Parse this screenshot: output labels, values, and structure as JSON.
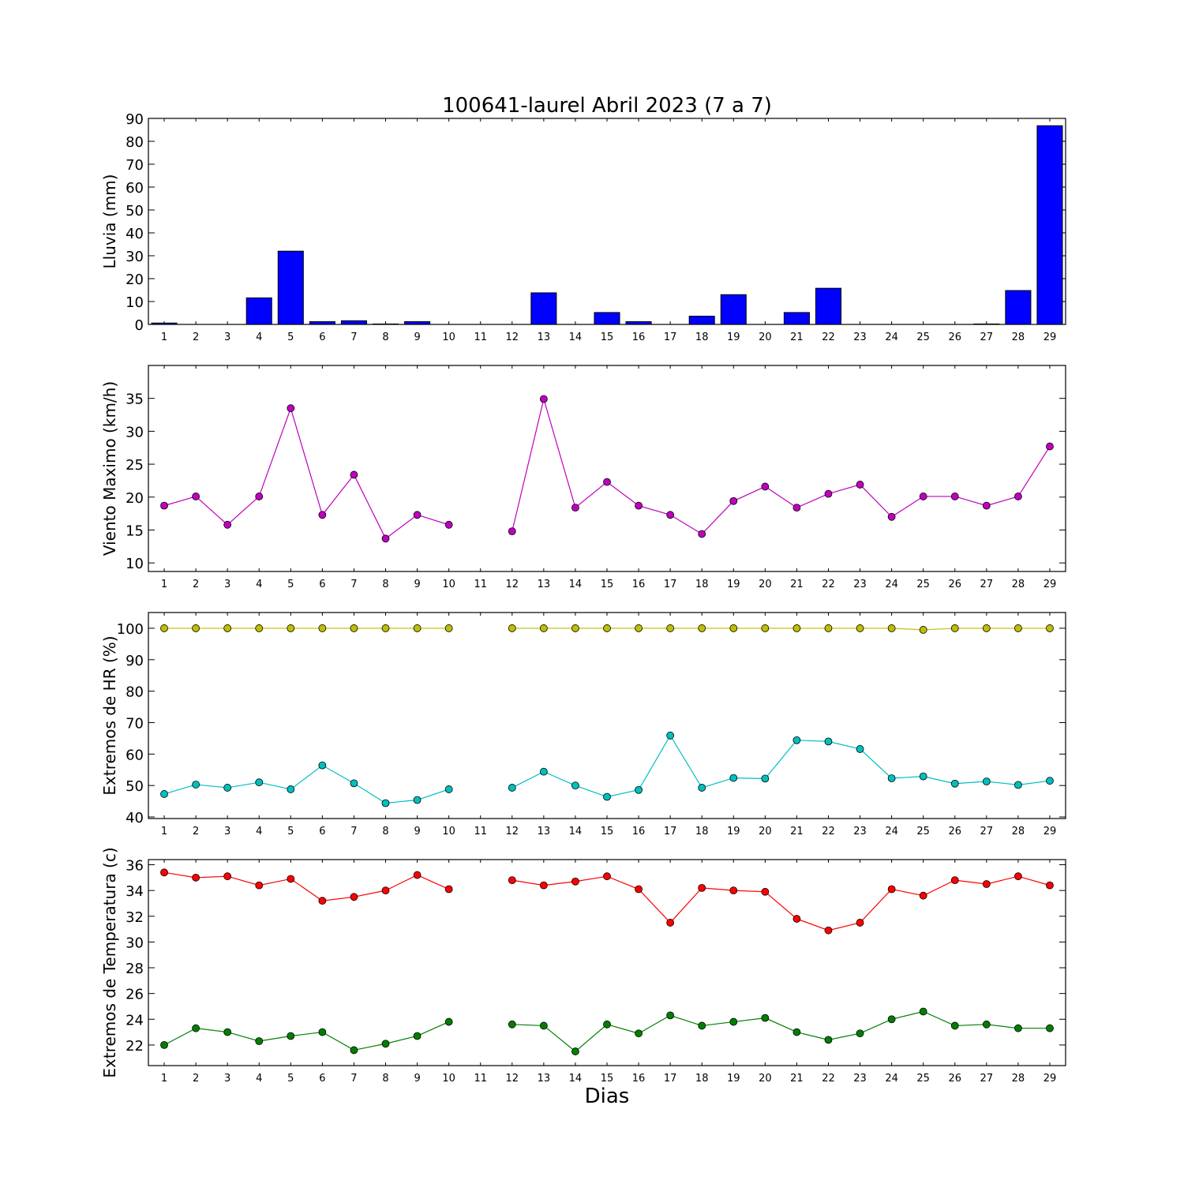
{
  "figure_title": "100641-laurel Abril 2023  (7 a 7)",
  "xlabel": "Dias",
  "chart_data": [
    {
      "type": "bar",
      "ylabel": "Lluvia (mm)",
      "ylim": [
        0,
        90
      ],
      "yticks": [
        0,
        10,
        20,
        30,
        40,
        50,
        60,
        70,
        80,
        90
      ],
      "x": [
        1,
        2,
        3,
        4,
        5,
        6,
        7,
        8,
        9,
        10,
        11,
        12,
        13,
        14,
        15,
        16,
        17,
        18,
        19,
        20,
        21,
        22,
        23,
        24,
        25,
        26,
        27,
        28,
        29
      ],
      "xticks": [
        1,
        2,
        3,
        4,
        5,
        6,
        7,
        8,
        9,
        10,
        11,
        12,
        13,
        14,
        15,
        16,
        17,
        18,
        19,
        20,
        21,
        22,
        23,
        24,
        25,
        26,
        27,
        28,
        29
      ],
      "values": [
        0.6,
        0,
        0,
        11.6,
        32.0,
        1.2,
        1.6,
        0.2,
        1.2,
        0,
        0,
        0,
        13.8,
        0,
        5.2,
        1.2,
        0,
        3.6,
        13.0,
        0,
        5.2,
        15.8,
        0,
        0,
        0,
        0,
        0.2,
        14.8,
        86.8
      ],
      "color": "#0000ff"
    },
    {
      "type": "line",
      "ylabel": "Viento Maximo (km/h)",
      "ylim": [
        8.7,
        40
      ],
      "yticks": [
        10,
        15,
        20,
        25,
        30,
        35
      ],
      "xticks": [
        1,
        2,
        3,
        4,
        5,
        6,
        7,
        8,
        9,
        10,
        11,
        12,
        13,
        14,
        15,
        16,
        17,
        18,
        19,
        20,
        21,
        22,
        23,
        24,
        25,
        26,
        27,
        28,
        29
      ],
      "series": [
        {
          "color": "#bf00bf",
          "x": [
            1,
            2,
            3,
            4,
            5,
            6,
            7,
            8,
            9,
            10,
            11,
            12,
            13,
            14,
            15,
            16,
            17,
            18,
            19,
            20,
            21,
            22,
            23,
            24,
            25,
            26,
            27,
            28,
            29
          ],
          "values": [
            18.7,
            20.1,
            15.8,
            20.1,
            33.5,
            17.3,
            23.4,
            13.7,
            17.3,
            15.8,
            null,
            14.8,
            34.9,
            18.4,
            22.3,
            18.7,
            17.3,
            14.4,
            19.4,
            21.6,
            18.4,
            20.5,
            21.9,
            17.0,
            20.1,
            20.1,
            18.7,
            20.1,
            27.7
          ]
        }
      ]
    },
    {
      "type": "line",
      "ylabel": "Extremos de HR (%)",
      "ylim": [
        39.5,
        105
      ],
      "yticks": [
        40,
        50,
        60,
        70,
        80,
        90,
        100
      ],
      "xticks": [
        1,
        2,
        3,
        4,
        5,
        6,
        7,
        8,
        9,
        10,
        11,
        12,
        13,
        14,
        15,
        16,
        17,
        18,
        19,
        20,
        21,
        22,
        23,
        24,
        25,
        26,
        27,
        28,
        29
      ],
      "series": [
        {
          "color": "#bfbf00",
          "x": [
            1,
            2,
            3,
            4,
            5,
            6,
            7,
            8,
            9,
            10,
            11,
            12,
            13,
            14,
            15,
            16,
            17,
            18,
            19,
            20,
            21,
            22,
            23,
            24,
            25,
            26,
            27,
            28,
            29
          ],
          "values": [
            100,
            100,
            100,
            100,
            100,
            100,
            100,
            100,
            100,
            100,
            null,
            100,
            100,
            100,
            100,
            100,
            100,
            100,
            100,
            100,
            100,
            100,
            100,
            100,
            99.5,
            100,
            100,
            100,
            100
          ]
        },
        {
          "color": "#00bfbf",
          "x": [
            1,
            2,
            3,
            4,
            5,
            6,
            7,
            8,
            9,
            10,
            11,
            12,
            13,
            14,
            15,
            16,
            17,
            18,
            19,
            20,
            21,
            22,
            23,
            24,
            25,
            26,
            27,
            28,
            29
          ],
          "values": [
            47.3,
            50.3,
            49.3,
            51.0,
            48.8,
            56.4,
            50.7,
            44.4,
            45.4,
            48.8,
            null,
            49.3,
            54.4,
            50.0,
            46.4,
            48.6,
            65.9,
            49.3,
            52.4,
            52.2,
            64.4,
            64.0,
            61.6,
            52.3,
            52.9,
            50.6,
            51.3,
            50.2,
            51.5
          ]
        }
      ]
    },
    {
      "type": "line",
      "ylabel": "Extremos de Temperatura (c)",
      "ylim": [
        20.4,
        36.4
      ],
      "yticks": [
        22,
        24,
        26,
        28,
        30,
        32,
        34,
        36
      ],
      "xticks": [
        1,
        2,
        3,
        4,
        5,
        6,
        7,
        8,
        9,
        10,
        11,
        12,
        13,
        14,
        15,
        16,
        17,
        18,
        19,
        20,
        21,
        22,
        23,
        24,
        25,
        26,
        27,
        28,
        29
      ],
      "series": [
        {
          "color": "#ff0000",
          "x": [
            1,
            2,
            3,
            4,
            5,
            6,
            7,
            8,
            9,
            10,
            11,
            12,
            13,
            14,
            15,
            16,
            17,
            18,
            19,
            20,
            21,
            22,
            23,
            24,
            25,
            26,
            27,
            28,
            29
          ],
          "values": [
            35.4,
            35.0,
            35.1,
            34.4,
            34.9,
            33.2,
            33.5,
            34.0,
            35.2,
            34.1,
            null,
            34.8,
            34.4,
            34.7,
            35.1,
            34.1,
            31.5,
            34.2,
            34.0,
            33.9,
            31.8,
            30.9,
            31.5,
            34.1,
            33.6,
            34.8,
            34.5,
            35.1,
            34.4
          ]
        },
        {
          "color": "#007f00",
          "x": [
            1,
            2,
            3,
            4,
            5,
            6,
            7,
            8,
            9,
            10,
            11,
            12,
            13,
            14,
            15,
            16,
            17,
            18,
            19,
            20,
            21,
            22,
            23,
            24,
            25,
            26,
            27,
            28,
            29
          ],
          "values": [
            22.0,
            23.3,
            23.0,
            22.3,
            22.7,
            23.0,
            21.6,
            22.1,
            22.7,
            23.8,
            null,
            23.6,
            23.5,
            21.5,
            23.6,
            22.9,
            24.3,
            23.5,
            23.8,
            24.1,
            23.0,
            22.4,
            22.9,
            24.0,
            24.6,
            23.5,
            23.6,
            23.3,
            23.3
          ]
        }
      ]
    }
  ]
}
